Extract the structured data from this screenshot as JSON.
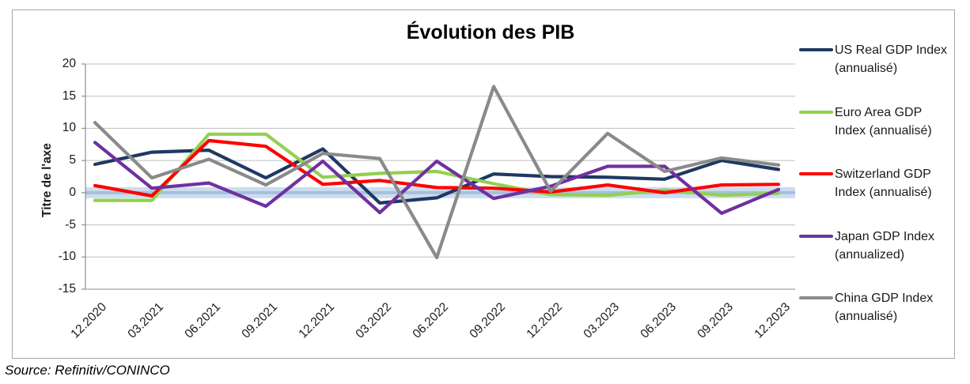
{
  "title": "Évolution des PIB",
  "y_axis_title": "Titre de l'axe",
  "source": "Source: Refinitiv/CONINCO",
  "chart_data": {
    "type": "line",
    "title": "Évolution des PIB",
    "ylabel": "Titre de l'axe",
    "xlabel": "",
    "categories": [
      "12.2020",
      "03.2021",
      "06.2021",
      "09.2021",
      "12.2021",
      "03.2022",
      "06.2022",
      "09.2022",
      "12.2022",
      "03.2023",
      "06.2023",
      "09.2023",
      "12.2023"
    ],
    "series": [
      {
        "name": "US Real GDP Index (annualisé)",
        "color": "#1F3864",
        "values": [
          4.4,
          6.3,
          6.6,
          2.3,
          6.8,
          -1.6,
          -0.8,
          2.9,
          2.5,
          2.4,
          2.1,
          5.0,
          3.6
        ]
      },
      {
        "name": "Euro Area GDP Index (annualisé)",
        "color": "#92D050",
        "values": [
          -1.2,
          -1.2,
          9.1,
          9.1,
          2.4,
          3.0,
          3.3,
          1.4,
          -0.3,
          -0.4,
          0.4,
          -0.4,
          -0.1
        ]
      },
      {
        "name": "Switzerland GDP Index (annualisé)",
        "color": "#FF0000",
        "values": [
          1.1,
          -0.5,
          8.1,
          7.2,
          1.3,
          1.9,
          0.8,
          0.7,
          0.1,
          1.2,
          0.0,
          1.2,
          1.3
        ]
      },
      {
        "name": "Japan GDP Index (annualized)",
        "color": "#7030A0",
        "values": [
          7.8,
          0.7,
          1.5,
          -2.1,
          4.9,
          -3.1,
          4.9,
          -0.9,
          1.0,
          4.1,
          4.1,
          -3.2,
          0.5
        ]
      },
      {
        "name": "China GDP Index (annualisé)",
        "color": "#8A8A8A",
        "values": [
          10.9,
          2.3,
          5.2,
          1.2,
          6.1,
          5.3,
          -10.1,
          16.5,
          0.2,
          9.2,
          3.3,
          5.4,
          4.3
        ]
      }
    ],
    "ylim": [
      -15,
      20
    ],
    "yticks": [
      20,
      15,
      10,
      5,
      0,
      -5,
      -10,
      -15
    ],
    "grid": true,
    "legend_position": "right",
    "gridline_color": "#BFBFBF",
    "axis_color": "#8E8E8E",
    "zero_band": {
      "outer": "#CCDDEF",
      "inner": "#A6BFDC",
      "value": 0
    }
  },
  "legend": {
    "items": [
      {
        "line1": "US Real GDP Index",
        "line2": "(annualisé)",
        "color": "#1F3864"
      },
      {
        "line1": "Euro Area GDP",
        "line2": "Index (annualisé)",
        "color": "#92D050"
      },
      {
        "line1": "Switzerland GDP",
        "line2": "Index (annualisé)",
        "color": "#FF0000"
      },
      {
        "line1": "Japan GDP Index",
        "line2": "(annualized)",
        "color": "#7030A0"
      },
      {
        "line1": "China GDP Index",
        "line2": "(annualisé)",
        "color": "#8A8A8A"
      }
    ]
  }
}
